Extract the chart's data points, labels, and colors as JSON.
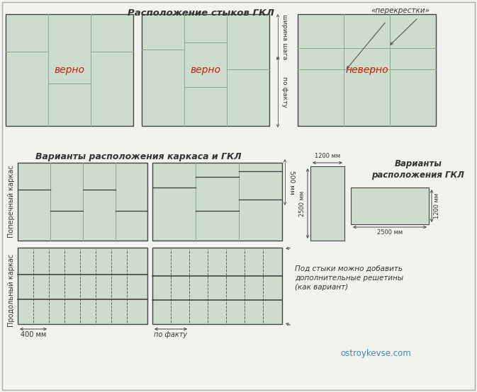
{
  "title": "Расположение стыков ГКЛ",
  "bg_color": "#f2f2ee",
  "panel_fill": "#cddccd",
  "panel_edge": "#8aaa8a",
  "border_dark": "#444444",
  "border_light": "#888888",
  "red_color": "#cc2200",
  "dashed_color": "#cc3333",
  "arrow_color": "#555555",
  "text_color": "#333333",
  "site_color": "#4488aa",
  "label_verno": "верно",
  "label_neverno": "неверно",
  "label_perekrestki": "«перекрестки»",
  "label_shirshaga": "ширина шага",
  "label_pofaktu_top": "по факту",
  "label_variants_karkasa": "Варианты расположения каркаса и ГКЛ",
  "label_variants_gkl": "Варианты\nрасположения ГКЛ",
  "label_poperechny": "Поперечный каркас",
  "label_prodolny": "Продольный каркас",
  "label_400mm": "400 мм",
  "label_pofaktu2": "по факту",
  "label_500mm": "500 мм",
  "label_1200mm_top": "1200 мм",
  "label_2500mm_left": "2500 мм",
  "label_2500mm_bot": "2500 мм",
  "label_1200mm_right": "1200 мм",
  "label_pod_styki": "Под стыки можно добавить\nдополнительные решетины\n(как вариант)",
  "label_site": "ostroykevse.com"
}
